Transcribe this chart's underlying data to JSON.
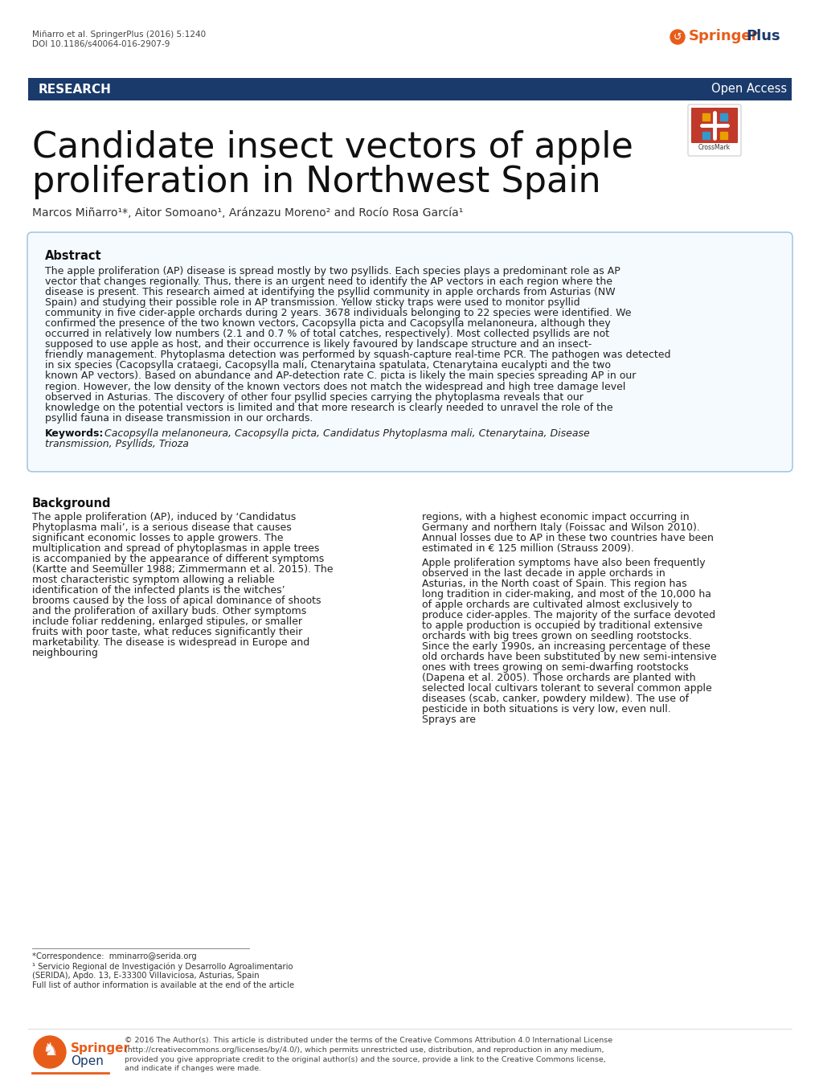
{
  "bg_color": "#ffffff",
  "header_citation": "Miñarro et al. SpringerPlus (2016) 5:1240",
  "header_doi": "DOI 10.1186/s40064-016-2907-9",
  "research_bar_color": "#1a3a6b",
  "research_text": "RESEARCH",
  "open_access_text": "Open Access",
  "main_title_line1": "Candidate insect vectors of apple",
  "main_title_line2": "proliferation in Northwest Spain",
  "authors": "Marcos Miñarro¹*, Aitor Somoano¹, Aránzazu Moreno² and Rocío Rosa García¹",
  "abstract_title": "Abstract",
  "abstract_text": "The apple proliferation (AP) disease is spread mostly by two psyllids. Each species plays a predominant role as AP vector that changes regionally. Thus, there is an urgent need to identify the AP vectors in each region where the disease is present. This research aimed at identifying the psyllid community in apple orchards from Asturias (NW Spain) and studying their possible role in AP transmission. Yellow sticky traps were used to monitor psyllid community in five cider-apple orchards during 2 years. 3678 individuals belonging to 22 species were identified. We confirmed the presence of the two known vectors, Cacopsylla picta and Cacopsylla melanoneura, although they occurred in relatively low numbers (2.1 and 0.7 % of total catches, respectively). Most collected psyllids are not supposed to use apple as host, and their occurrence is likely favoured by landscape structure and an insect-friendly management. Phytoplasma detection was performed by squash-capture real-time PCR. The pathogen was detected in six species (Cacopsylla crataegi, Cacopsylla mali, Ctenarytaina spatulata, Ctenarytaina eucalypti and the two known AP vectors). Based on abundance and AP-detection rate C. picta is likely the main species spreading AP in our region. However, the low density of the known vectors does not match the widespread and high tree damage level observed in Asturias. The discovery of other four psyllid species carrying the phytoplasma reveals that our knowledge on the potential vectors is limited and that more research is clearly needed to unravel the role of the psyllid fauna in disease transmission in our orchards.",
  "keywords_label": "Keywords:",
  "keywords_text": "  Cacopsylla melanoneura, Cacopsylla picta, Candidatus Phytoplasma mali, Ctenarytaina, Disease\ntransmission, Psyllids, Trioza",
  "background_title": "Background",
  "background_text_col1": "The apple proliferation (AP), induced by ‘Candidatus Phytoplasma mali’, is a serious disease that causes significant economic losses to apple growers. The multiplication and spread of phytoplasmas in apple trees is accompanied by the appearance of different symptoms (Kartte and Seemüller 1988; Zimmermann et al. 2015). The most characteristic symptom allowing a reliable identification of the infected plants is the witches’ brooms caused by the loss of apical dominance of shoots and the proliferation of axillary buds. Other symptoms include foliar reddening, enlarged stipules, or smaller fruits with poor taste, what reduces significantly their marketability. The disease is widespread in Europe and neighbouring",
  "background_text_col2": "regions, with a highest economic impact occurring in Germany and northern Italy (Foissac and Wilson 2010). Annual losses due to AP in these two countries have been estimated in € 125 million (Strauss 2009).\n   Apple proliferation symptoms have also been frequently observed in the last decade in apple orchards in Asturias, in the North coast of Spain. This region has long tradition in cider-making, and most of the 10,000 ha of apple orchards are cultivated almost exclusively to produce cider-apples. The majority of the surface devoted to apple production is occupied by traditional extensive orchards with big trees grown on seedling rootstocks. Since the early 1990s, an increasing percentage of these old orchards have been substituted by new semi-intensive ones with trees growing on semi-dwarfing rootstocks (Dapena et al. 2005). Those orchards are planted with selected local cultivars tolerant to several common apple diseases (scab, canker, powdery mildew). The use of pesticide in both situations is very low, even null. Sprays are",
  "footnote_line": "*Correspondence:  mminarro@serida.org",
  "footnote_1": "¹ Servicio Regional de Investigación y Desarrollo Agroalimentario",
  "footnote_2": "(SERIDA), Apdo. 13, E-33300 Villaviciosa, Asturias, Spain",
  "footnote_3": "Full list of author information is available at the end of the article",
  "copyright": "© 2016 The Author(s). This article is distributed under the terms of the Creative Commons Attribution 4.0 International License\n(http://creativecommons.org/licenses/by/4.0/), which permits unrestricted use, distribution, and reproduction in any medium,\nprovided you give appropriate credit to the original author(s) and the source, provide a link to the Creative Commons license,\nand indicate if changes were made."
}
